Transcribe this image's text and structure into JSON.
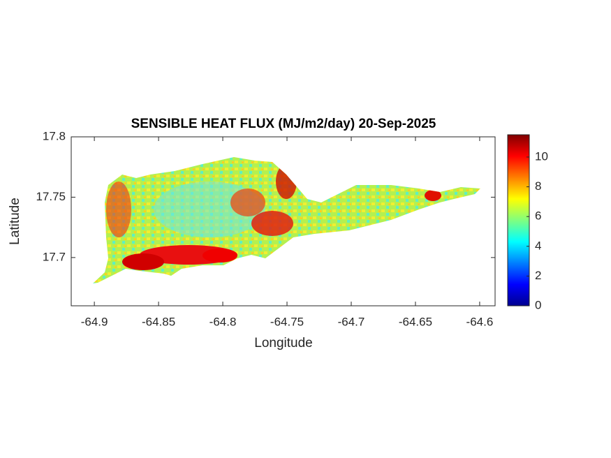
{
  "chart_data": {
    "type": "heatmap",
    "title": "SENSIBLE HEAT FLUX (MJ/m2/day) 20-Sep-2025",
    "xlabel": "Longitude",
    "ylabel": "Latitude",
    "xlim": [
      -64.918,
      -64.588
    ],
    "xticks": [
      -64.9,
      -64.85,
      -64.8,
      -64.75,
      -64.7,
      -64.65,
      -64.6
    ],
    "ylim": [
      17.66,
      17.8
    ],
    "yticks": [
      17.7,
      17.75,
      17.8
    ],
    "colormap": "jet",
    "clim": [
      0,
      11.5
    ],
    "cticks": [
      0,
      2,
      4,
      6,
      8,
      10
    ]
  }
}
